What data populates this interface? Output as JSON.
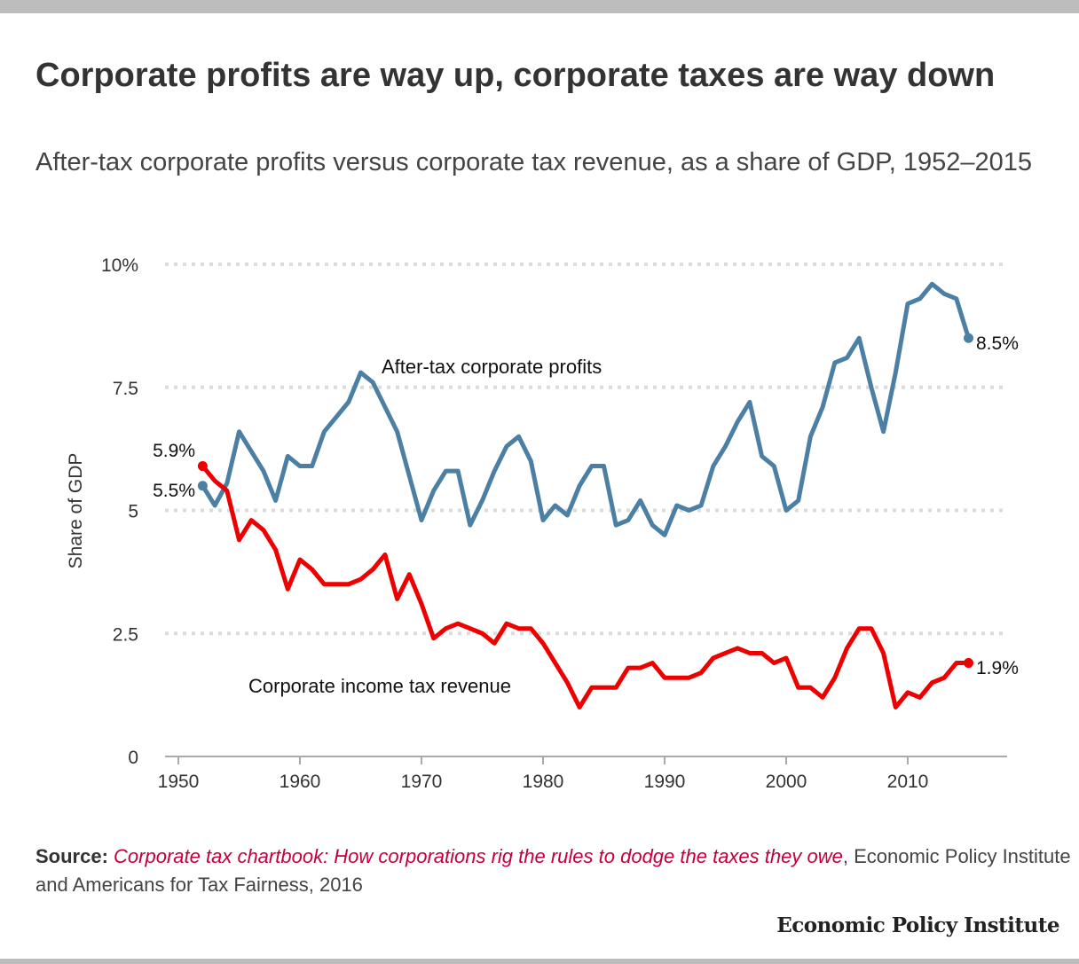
{
  "title": "Corporate profits are way up, corporate taxes are way down",
  "subtitle": "After-tax corporate profits versus corporate tax revenue, as a share of GDP, 1952–2015",
  "source": {
    "label": "Source:",
    "title": "Corporate tax chartbook: How corporations rig the rules to dodge the taxes they owe",
    "rest": ", Economic Policy Institute and Americans for Tax Fairness, 2016"
  },
  "logo": "Economic Policy Institute",
  "chart_data": {
    "type": "line",
    "ylabel": "Share of GDP",
    "xlim": [
      1950,
      2018
    ],
    "ylim": [
      0,
      10
    ],
    "grid": true,
    "x_ticks": [
      "1950",
      "1960",
      "1970",
      "1980",
      "1990",
      "2000",
      "2010"
    ],
    "y_ticks": [
      "0",
      "2.5",
      "5",
      "7.5",
      "10%"
    ],
    "y_tick_values": [
      0,
      2.5,
      5,
      7.5,
      10
    ],
    "x": [
      1952,
      1953,
      1954,
      1955,
      1956,
      1957,
      1958,
      1959,
      1960,
      1961,
      1962,
      1963,
      1964,
      1965,
      1966,
      1967,
      1968,
      1969,
      1970,
      1971,
      1972,
      1973,
      1974,
      1975,
      1976,
      1977,
      1978,
      1979,
      1980,
      1981,
      1982,
      1983,
      1984,
      1985,
      1986,
      1987,
      1988,
      1989,
      1990,
      1991,
      1992,
      1993,
      1994,
      1995,
      1996,
      1997,
      1998,
      1999,
      2000,
      2001,
      2002,
      2003,
      2004,
      2005,
      2006,
      2007,
      2008,
      2009,
      2010,
      2011,
      2012,
      2013,
      2014,
      2015
    ],
    "series": [
      {
        "name": "After-tax corporate profits",
        "color": "#4b7fa3",
        "start_label": "5.5%",
        "end_label": "8.5%",
        "values": [
          5.5,
          5.1,
          5.55,
          6.6,
          6.2,
          5.8,
          5.2,
          6.1,
          5.9,
          5.9,
          6.6,
          6.9,
          7.2,
          7.8,
          7.6,
          7.1,
          6.6,
          5.7,
          4.8,
          5.4,
          5.8,
          5.8,
          4.7,
          5.2,
          5.8,
          6.3,
          6.5,
          6.0,
          4.8,
          5.1,
          4.9,
          5.5,
          5.9,
          5.9,
          4.7,
          4.8,
          5.2,
          4.7,
          4.5,
          5.1,
          5.0,
          5.1,
          5.9,
          6.3,
          6.8,
          7.2,
          6.1,
          5.9,
          5.0,
          5.2,
          6.5,
          7.1,
          8.0,
          8.1,
          8.5,
          7.5,
          6.6,
          7.8,
          9.2,
          9.3,
          9.6,
          9.4,
          9.3,
          8.5
        ]
      },
      {
        "name": "Corporate income tax revenue",
        "color": "#ee0000",
        "start_label": "5.9%",
        "end_label": "1.9%",
        "values": [
          5.9,
          5.6,
          5.4,
          4.4,
          4.8,
          4.6,
          4.2,
          3.4,
          4.0,
          3.8,
          3.5,
          3.5,
          3.5,
          3.6,
          3.8,
          4.1,
          3.2,
          3.7,
          3.1,
          2.4,
          2.6,
          2.7,
          2.6,
          2.5,
          2.3,
          2.7,
          2.6,
          2.6,
          2.3,
          1.9,
          1.5,
          1.0,
          1.4,
          1.4,
          1.4,
          1.8,
          1.8,
          1.9,
          1.6,
          1.6,
          1.6,
          1.7,
          2.0,
          2.1,
          2.2,
          2.1,
          2.1,
          1.9,
          2.0,
          1.4,
          1.4,
          1.2,
          1.6,
          2.2,
          2.6,
          2.6,
          2.1,
          1.0,
          1.3,
          1.2,
          1.5,
          1.6,
          1.9,
          1.9
        ]
      }
    ]
  }
}
